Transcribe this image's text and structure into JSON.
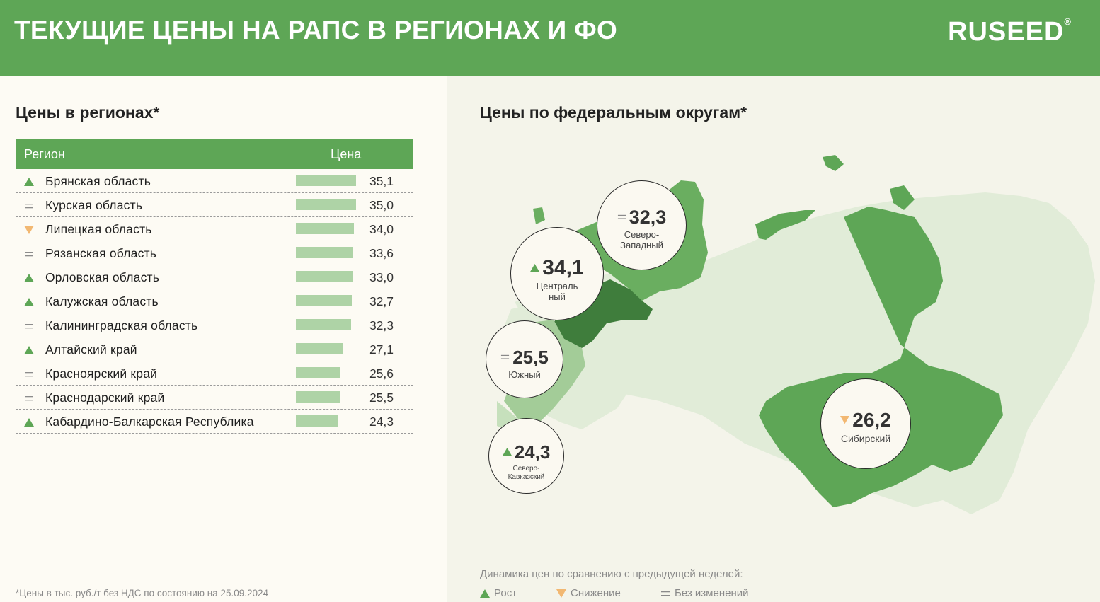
{
  "header": {
    "title": "ТЕКУЩИЕ ЦЕНЫ НА РАПС В РЕГИОНАХ И ФО",
    "logo": "RUSEED",
    "logo_mark": "®"
  },
  "colors": {
    "brand": "#5ea656",
    "up": "#5ea656",
    "down": "#f2b872",
    "bar": "#aed3a6",
    "central": "#3f7d3c",
    "south": "#a3cc98",
    "light": "#e1ecd8"
  },
  "regions": {
    "title": "Цены в регионах*",
    "col_region": "Регион",
    "col_price": "Цена",
    "max_price": 35.1,
    "rows": [
      {
        "trend": "up",
        "name": "Брянская область",
        "price": 35.1,
        "price_label": "35,1"
      },
      {
        "trend": "flat",
        "name": "Курская область",
        "price": 35.0,
        "price_label": "35,0"
      },
      {
        "trend": "down",
        "name": "Липецкая область",
        "price": 34.0,
        "price_label": "34,0"
      },
      {
        "trend": "flat",
        "name": "Рязанская область",
        "price": 33.6,
        "price_label": "33,6"
      },
      {
        "trend": "up",
        "name": "Орловская область",
        "price": 33.0,
        "price_label": "33,0"
      },
      {
        "trend": "up",
        "name": "Калужская область",
        "price": 32.7,
        "price_label": "32,7"
      },
      {
        "trend": "flat",
        "name": "Калининградская область",
        "price": 32.3,
        "price_label": "32,3"
      },
      {
        "trend": "up",
        "name": "Алтайский край",
        "price": 27.1,
        "price_label": "27,1"
      },
      {
        "trend": "flat",
        "name": "Красноярский край",
        "price": 25.6,
        "price_label": "25,6"
      },
      {
        "trend": "flat",
        "name": "Краснодарский край",
        "price": 25.5,
        "price_label": "25,5"
      },
      {
        "trend": "up",
        "name": "Кабардино-Балкарская Республика",
        "price": 24.3,
        "price_label": "24,3"
      }
    ],
    "footnote": "*Цены в тыс. руб./т без НДС по состоянию на 25.09.2024"
  },
  "districts": {
    "title": "Цены по федеральным округам*",
    "items": [
      {
        "value": "32,3",
        "trend": "flat",
        "name_lines": [
          "Северо-",
          "Западный"
        ]
      },
      {
        "value": "34,1",
        "trend": "up",
        "name_lines": [
          "Централь",
          "ный"
        ]
      },
      {
        "value": "25,5",
        "trend": "flat",
        "name_lines": [
          "Южный"
        ]
      },
      {
        "value": "24,3",
        "trend": "up",
        "name_lines": [
          "Северо-",
          "Кавказский"
        ]
      },
      {
        "value": "26,2",
        "trend": "down",
        "name_lines": [
          "Сибирский"
        ]
      }
    ]
  },
  "legend": {
    "title": "Динамика цен по сравнению с предыдущей неделей:",
    "up": "Рост",
    "down": "Снижение",
    "flat": "Без изменений"
  }
}
